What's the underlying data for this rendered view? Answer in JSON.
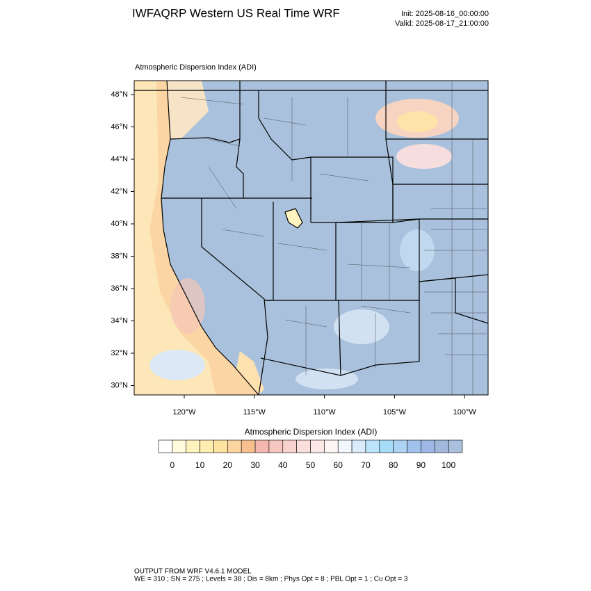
{
  "header": {
    "title": "IWFAQRP Western US Real Time WRF",
    "init": "Init: 2025-08-16_00:00:00",
    "valid": "Valid: 2025-08-17_21:00:00"
  },
  "map": {
    "label": "Atmospheric Dispersion Index   (ADI)",
    "lat_labels": [
      "48°N",
      "46°N",
      "44°N",
      "42°N",
      "40°N",
      "38°N",
      "36°N",
      "34°N",
      "32°N",
      "30°N"
    ],
    "lon_labels": [
      "120°W",
      "115°W",
      "110°W",
      "105°W",
      "100°W"
    ]
  },
  "colorbar": {
    "title": "Atmospheric Dispersion Index  (ADI)",
    "labels": [
      0,
      10,
      20,
      30,
      40,
      50,
      60,
      70,
      80,
      90,
      100
    ],
    "colors": [
      "#ffffff",
      "#fffbdc",
      "#fff3c0",
      "#ffecb0",
      "#ffe3a0",
      "#fdd5a0",
      "#f9c08f",
      "#f5b8b0",
      "#f6c6c0",
      "#f8d2ce",
      "#fadedb",
      "#fce9e7",
      "#fdf4f4",
      "#f2f7fe",
      "#d9ecfb",
      "#bce5fb",
      "#a6dcf7",
      "#aed2f3",
      "#a2c2ee",
      "#9fb7e6",
      "#a3b9dc",
      "#a9c1dc"
    ]
  },
  "footer": {
    "line1": "OUTPUT FROM WRF V4.6.1 MODEL",
    "line2": "WE = 310 ; SN = 275 ; Levels = 38 ; Dis = 8km ; Phys Opt = 8 ; PBL Opt = 1 ; Cu Opt = 3"
  }
}
